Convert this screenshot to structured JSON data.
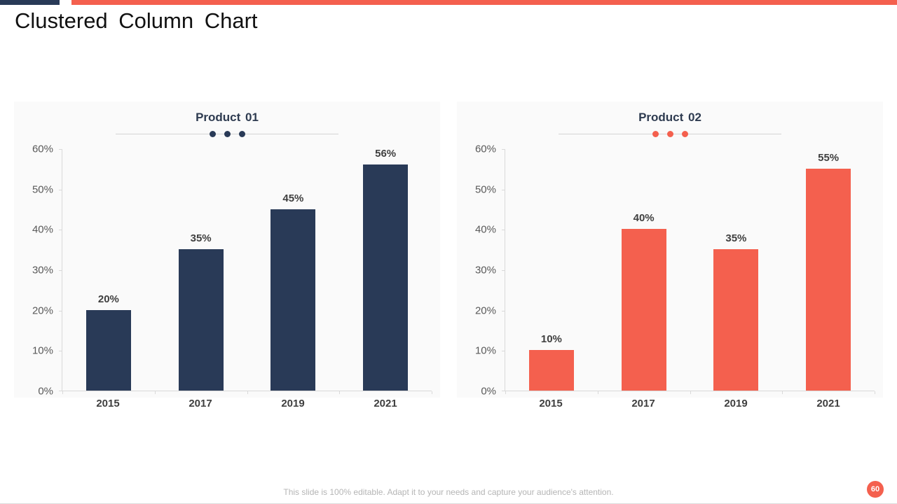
{
  "slide": {
    "title": "Clustered Column Chart",
    "footer": "This slide is 100% editable. Adapt it to your needs and capture your audience's attention.",
    "page_number": "60"
  },
  "colors": {
    "navy": "#293a57",
    "coral": "#f4604e",
    "axis_line": "#d9d9d9",
    "ytick_label": "#595959",
    "data_label": "#3f3f3f",
    "chart_title": "#2e3b50",
    "footer_text": "#b5b5b5",
    "panel_bg": "#fafafa"
  },
  "chart_data": [
    {
      "type": "bar",
      "title": "Product 01",
      "categories": [
        "2015",
        "2017",
        "2019",
        "2021"
      ],
      "values": [
        20,
        35,
        45,
        56
      ],
      "data_labels": [
        "20%",
        "35%",
        "45%",
        "56%"
      ],
      "bar_color": "#293a57",
      "accent_color": "#293a57",
      "ylim": [
        0,
        60
      ],
      "ytick_labels": [
        "60%",
        "50%",
        "40%",
        "30%",
        "20%",
        "10%",
        "0%"
      ],
      "grid": false,
      "legend": "none",
      "title_accent_dots": 3
    },
    {
      "type": "bar",
      "title": "Product 02",
      "categories": [
        "2015",
        "2017",
        "2019",
        "2021"
      ],
      "values": [
        10,
        40,
        35,
        55
      ],
      "data_labels": [
        "10%",
        "40%",
        "35%",
        "55%"
      ],
      "bar_color": "#f4604e",
      "accent_color": "#f4604e",
      "ylim": [
        0,
        60
      ],
      "ytick_labels": [
        "60%",
        "50%",
        "40%",
        "30%",
        "20%",
        "10%",
        "0%"
      ],
      "grid": false,
      "legend": "none",
      "title_accent_dots": 3
    }
  ]
}
